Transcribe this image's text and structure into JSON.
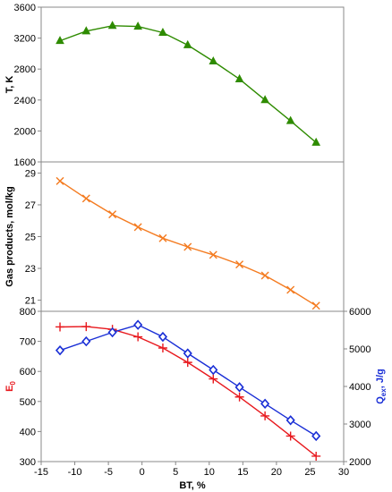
{
  "chart_data": {
    "type": "line",
    "x_label": "BT, %",
    "x_axis": {
      "min": -15,
      "max": 30,
      "ticks": [
        "-15",
        "-10",
        "-5",
        "0",
        "5",
        "10",
        "15",
        "20",
        "25",
        "30"
      ]
    },
    "x": [
      -12.2,
      -8.3,
      -4.4,
      -0.6,
      3.1,
      6.8,
      10.6,
      14.5,
      18.3,
      22.1,
      25.9
    ],
    "panels": [
      {
        "ylabel": "T, K",
        "ylim": [
          1600,
          3600
        ],
        "yticks": [
          "1600",
          "2000",
          "2400",
          "2800",
          "3200",
          "3600"
        ],
        "series": [
          {
            "color": "#2e8b00",
            "marker": "triangle",
            "values": [
              3165,
              3290,
              3360,
              3350,
              3270,
              3110,
              2900,
              2670,
              2400,
              2130,
              1850
            ]
          }
        ]
      },
      {
        "ylabel": "Gas products, mol/kg",
        "ylim": [
          20.3,
          29.7
        ],
        "yticks": [
          "21",
          "23",
          "25",
          "27",
          "29"
        ],
        "series": [
          {
            "color": "#f47b20",
            "marker": "x",
            "values": [
              28.5,
              27.4,
              26.4,
              25.6,
              24.9,
              24.35,
              23.85,
              23.25,
              22.55,
              21.65,
              20.65
            ]
          }
        ]
      },
      {
        "ylabel": "E",
        "ylabel_sub": "0",
        "ylim": [
          300,
          800
        ],
        "yticks": [
          "300",
          "400",
          "500",
          "600",
          "700",
          "800"
        ],
        "ylabel_right": "Q",
        "ylabel_right_sub": "ex",
        "ylabel_right_suffix": ", J/g",
        "ylim_right": [
          2000,
          6000
        ],
        "yticks_right": [
          "2000",
          "3000",
          "4000",
          "5000",
          "6000"
        ],
        "series": [
          {
            "color": "#e8191e",
            "marker": "plus",
            "axis": "left",
            "values": [
              748,
              749,
              740,
              715,
              678,
              630,
              575,
              515,
              452,
              385,
              318
            ]
          },
          {
            "color": "#1a2fd6",
            "marker": "diamond",
            "axis": "right",
            "values": [
              4960,
              5200,
              5440,
              5640,
              5320,
              4880,
              4440,
              3980,
              3540,
              3100,
              2680
            ]
          }
        ]
      }
    ]
  }
}
